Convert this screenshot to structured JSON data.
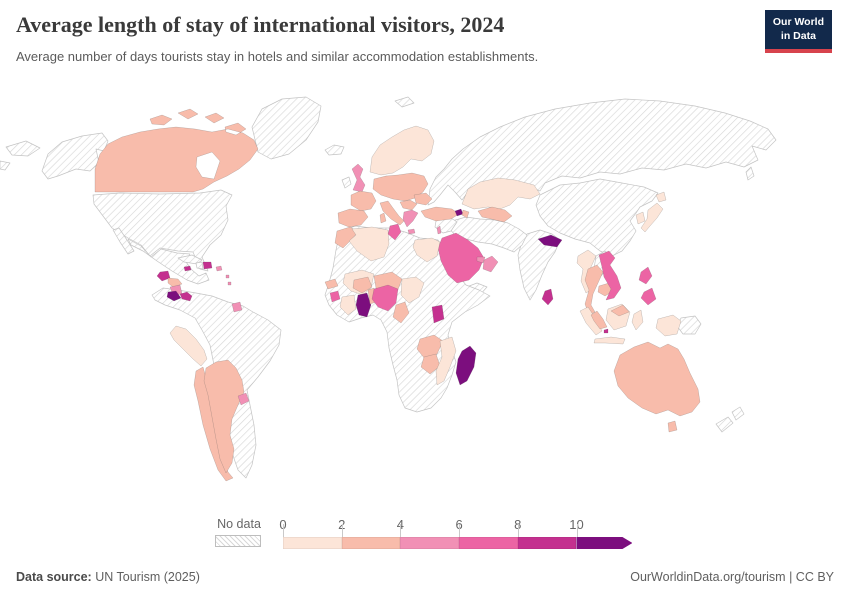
{
  "header": {
    "title": "Average length of stay of international visitors, 2024",
    "subtitle": "Average number of days tourists stay in hotels and similar accommodation establishments.",
    "logo": {
      "line1": "Our World",
      "line2": "in Data",
      "bg": "#12294b",
      "accent": "#d7434d"
    }
  },
  "chart_data": {
    "type": "heatmap",
    "subtype": "choropleth-world-map",
    "title": "Average length of stay of international visitors, 2024",
    "unit": "days",
    "no_data_label": "No data",
    "legend_ticks": [
      "0",
      "2",
      "4",
      "6",
      "8",
      "10"
    ],
    "legend_colors": [
      "#fce5d8",
      "#f8bcab",
      "#f190b5",
      "#ec64a4",
      "#c4308f",
      "#7c0e7e"
    ],
    "bucket_ranges": [
      "0-2",
      "2-4",
      "4-6",
      "6-8",
      "8-10",
      "10+"
    ],
    "countries_by_bucket": {
      "canada": 2,
      "guatemala": 5,
      "honduras": 2,
      "nicaragua": 3,
      "costa-rica": 6,
      "panama": 5,
      "jamaica": 5,
      "dominican-republic": 5,
      "puerto-rico": 3,
      "lesser-antilles": 3,
      "suriname": 3,
      "peru": 1,
      "chile": 2,
      "argentina": 2,
      "uruguay": 3,
      "scandinavia": 1,
      "denmark": 2,
      "united-kingdom": 3,
      "france": 2,
      "iberia": 2,
      "central-europe": 2,
      "italy": 2,
      "corsica-sardinia": 2,
      "balkans": 2,
      "greece": 3,
      "crete": 3,
      "romania-bulgaria": 2,
      "turkey": 2,
      "armenia": 6,
      "azerbaijan": 2,
      "israel": 3,
      "kazakhstan": 1,
      "uzbekistan-turkmenistan": 2,
      "saudi-arabia": 4,
      "oman": 3,
      "uae": 3,
      "morocco": 2,
      "algeria": 1,
      "tunisia": 4,
      "egypt": 1,
      "senegal": 2,
      "sierra-leone": 4,
      "cote-divoire": 1,
      "ghana": 6,
      "benin-togo": 2,
      "burkina-faso": 2,
      "mali": 1,
      "niger": 2,
      "chad": 1,
      "nigeria": 4,
      "cameroon": 2,
      "uganda": 5,
      "zambia": 2,
      "zimbabwe": 2,
      "mozambique": 1,
      "madagascar": 6,
      "nepal": 6,
      "sri-lanka": 5,
      "myanmar": 1,
      "thailand": 2,
      "cambodia": 2,
      "vietnam": 4,
      "malaysia": 2,
      "singapore": 5,
      "indonesia": 1,
      "philippines": 4,
      "japan": 1,
      "south-korea": 1,
      "australia": 2
    },
    "no_data_regions": [
      "alaska",
      "united-states",
      "mexico",
      "greenland",
      "cuba",
      "haiti",
      "colombia-venezuela-brazil",
      "iceland",
      "ireland",
      "svalbard",
      "russia-eastern-europe",
      "china-mongolia",
      "india",
      "iran-pakistan-afghanistan",
      "iraq-syria",
      "yemen",
      "africa-other",
      "laos",
      "papua-new-guinea",
      "new-zealand",
      "chukotka-wrap"
    ]
  },
  "footer": {
    "source_label": "Data source:",
    "source_value": " UN Tourism (2025)",
    "right_text": "OurWorldinData.org/tourism | CC BY"
  }
}
